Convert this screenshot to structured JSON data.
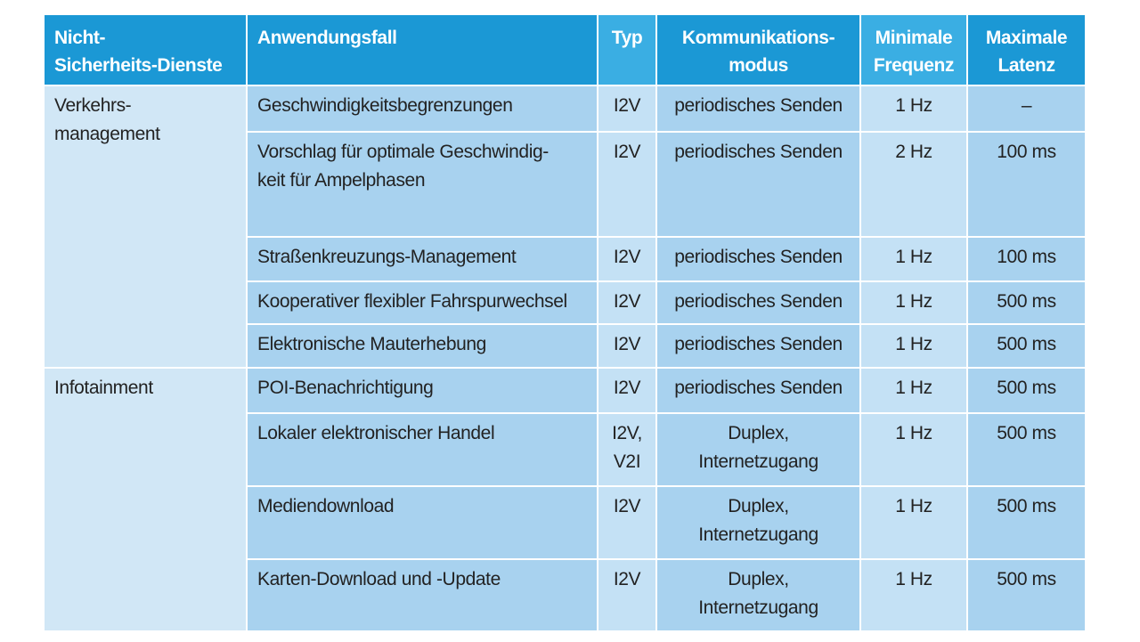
{
  "table": {
    "header": [
      "Nicht-\nSicherheits-Dienste",
      "Anwendungsfall",
      "Typ",
      "Kommunikations-\nmodus",
      "Minimale\nFrequenz",
      "Maximale\nLatenz"
    ],
    "groups": [
      {
        "name": "Verkehrs-\nmanagement",
        "rows": [
          [
            "Geschwindigkeitsbegrenzungen",
            "I2V",
            "periodisches Senden",
            "1 Hz",
            "–"
          ],
          [
            "Vorschlag für optimale Geschwindig-\nkeit für Ampelphasen",
            "I2V",
            "periodisches Senden",
            "2 Hz",
            "100 ms"
          ],
          [
            "Straßenkreuzungs-Management",
            "I2V",
            "periodisches Senden",
            "1 Hz",
            "100 ms"
          ],
          [
            "Kooperativer flexibler Fahrspurwechsel",
            "I2V",
            "periodisches Senden",
            "1 Hz",
            "500 ms"
          ],
          [
            "Elektronische Mauterhebung",
            "I2V",
            "periodisches Senden",
            "1 Hz",
            "500 ms"
          ]
        ]
      },
      {
        "name": "Infotainment",
        "rows": [
          [
            "POI-Benachrichtigung",
            "I2V",
            "periodisches Senden",
            "1 Hz",
            "500 ms"
          ],
          [
            "Lokaler elektronischer Handel",
            "I2V,\nV2I",
            "Duplex,\nInternetzugang",
            "1 Hz",
            "500 ms"
          ],
          [
            "Mediendownload",
            "I2V",
            "Duplex,\nInternetzugang",
            "1 Hz",
            "500 ms"
          ],
          [
            "Karten-Download und -Update",
            "I2V",
            "Duplex,\nInternetzugang",
            "1 Hz",
            "500 ms"
          ]
        ]
      }
    ]
  }
}
